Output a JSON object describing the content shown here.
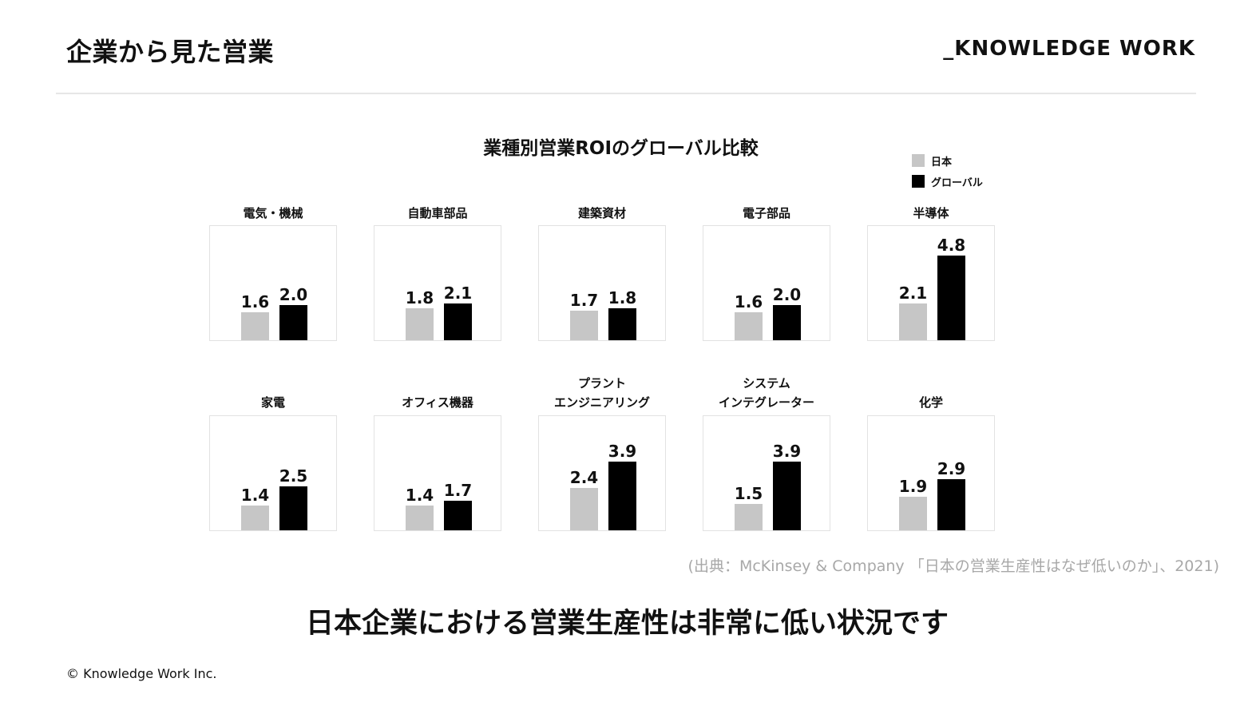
{
  "header": {
    "title": "企業から見た営業",
    "brand": "_KNOWLEDGE WORK"
  },
  "colors": {
    "japan": "#c6c6c6",
    "global": "#000000"
  },
  "chart_data": {
    "type": "bar",
    "title": "業種別営業ROIのグローバル比較",
    "legend": {
      "placement": "top-right",
      "entries": [
        "日本",
        "グローバル"
      ]
    },
    "series_names": [
      "日本",
      "グローバル"
    ],
    "ylim": [
      0,
      5.5
    ],
    "grid": false,
    "panels": [
      {
        "category": "電気・機械",
        "values": [
          1.6,
          2.0
        ],
        "labels": [
          "1.6",
          "2.0"
        ]
      },
      {
        "category": "自動車部品",
        "values": [
          1.8,
          2.1
        ],
        "labels": [
          "1.8",
          "2.1"
        ]
      },
      {
        "category": "建築資材",
        "values": [
          1.7,
          1.8
        ],
        "labels": [
          "1.7",
          "1.8"
        ]
      },
      {
        "category": "電子部品",
        "values": [
          1.6,
          2.0
        ],
        "labels": [
          "1.6",
          "2.0"
        ]
      },
      {
        "category": "半導体",
        "values": [
          2.1,
          4.8
        ],
        "labels": [
          "2.1",
          "4.8"
        ]
      },
      {
        "category": "家電",
        "values": [
          1.4,
          2.5
        ],
        "labels": [
          "1.4",
          "2.5"
        ]
      },
      {
        "category": "オフィス機器",
        "values": [
          1.4,
          1.7
        ],
        "labels": [
          "1.4",
          "1.7"
        ]
      },
      {
        "category": "プラント\nエンジニアリング",
        "values": [
          2.4,
          3.9
        ],
        "labels": [
          "2.4",
          "3.9"
        ]
      },
      {
        "category": "システム\nインテグレーター",
        "values": [
          1.5,
          3.9
        ],
        "labels": [
          "1.5",
          "3.9"
        ]
      },
      {
        "category": "化学",
        "values": [
          1.9,
          2.9
        ],
        "labels": [
          "1.9",
          "2.9"
        ]
      }
    ]
  },
  "source": "(出典：McKinsey & Company 「日本の営業生産性はなぜ低いのか」、2021)",
  "message": "日本企業における営業生産性は非常に低い状況です",
  "footer": {
    "copyright": "© Knowledge Work Inc."
  }
}
